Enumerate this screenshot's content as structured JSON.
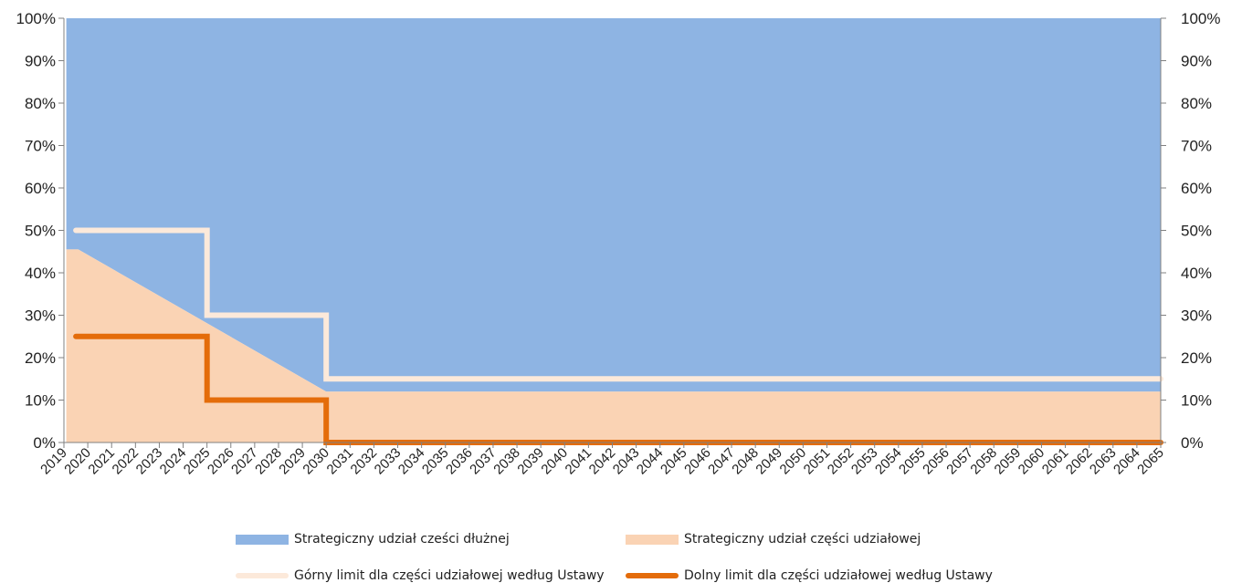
{
  "chart_data": {
    "type": "area",
    "x": [
      2019,
      2020,
      2021,
      2022,
      2023,
      2024,
      2025,
      2026,
      2027,
      2028,
      2029,
      2030,
      2031,
      2032,
      2033,
      2034,
      2035,
      2036,
      2037,
      2038,
      2039,
      2040,
      2041,
      2042,
      2043,
      2044,
      2045,
      2046,
      2047,
      2048,
      2049,
      2050,
      2051,
      2052,
      2053,
      2054,
      2055,
      2056,
      2057,
      2058,
      2059,
      2060,
      2061,
      2062,
      2063,
      2064,
      2065
    ],
    "x_tick_labels": [
      "2019",
      "2020",
      "2021",
      "2022",
      "2023",
      "2024",
      "2025",
      "2026",
      "2027",
      "2028",
      "2029",
      "2030",
      "2031",
      "2032",
      "2033",
      "2034",
      "2035",
      "2036",
      "2037",
      "2038",
      "2039",
      "2040",
      "2041",
      "2042",
      "2043",
      "2044",
      "2045",
      "2046",
      "2047",
      "2048",
      "2049",
      "2050",
      "2051",
      "2052",
      "2053",
      "2054",
      "2055",
      "2056",
      "2057",
      "2058",
      "2059",
      "2060",
      "2061",
      "2062",
      "2063",
      "2064",
      "2065"
    ],
    "y_tick_labels_left": [
      "0%",
      "10%",
      "20%",
      "30%",
      "40%",
      "50%",
      "60%",
      "70%",
      "80%",
      "90%",
      "100%"
    ],
    "y_tick_labels_right": [
      "0%",
      "10%",
      "20%",
      "30%",
      "40%",
      "50%",
      "60%",
      "70%",
      "80%",
      "90%",
      "100%"
    ],
    "ylim": [
      0,
      100
    ],
    "stacked": true,
    "series": [
      {
        "name": "Strategiczny udział części udziałowej",
        "kind": "area",
        "color": "#FAD3B4",
        "points": [
          [
            2019.1,
            45.5
          ],
          [
            2019.6,
            45.5
          ],
          [
            2030,
            12
          ],
          [
            2065,
            12
          ]
        ]
      },
      {
        "name": "Strategiczny udział cześci dłużnej",
        "kind": "area",
        "color": "#8EB4E3",
        "points": [
          [
            2019.1,
            54.5
          ],
          [
            2019.6,
            54.5
          ],
          [
            2030,
            88
          ],
          [
            2065,
            88
          ]
        ]
      },
      {
        "name": "Górny limit dla części udziałowej według Ustawy",
        "kind": "step-line",
        "color": "#FCE9DA",
        "points": [
          [
            2019.5,
            50
          ],
          [
            2025,
            50
          ],
          [
            2025,
            30
          ],
          [
            2030,
            30
          ],
          [
            2030,
            15
          ],
          [
            2065,
            15
          ]
        ]
      },
      {
        "name": "Dolny limit dla części udziałowej według Ustawy",
        "kind": "step-line",
        "color": "#E46C0A",
        "points": [
          [
            2019.5,
            25
          ],
          [
            2025,
            25
          ],
          [
            2025,
            10
          ],
          [
            2030,
            10
          ],
          [
            2030,
            0
          ],
          [
            2065,
            0
          ]
        ]
      }
    ],
    "legend": [
      {
        "label": "Strategiczny udział cześci dłużnej",
        "color": "#8EB4E3",
        "style": "box"
      },
      {
        "label": "Strategiczny udział części udziałowej",
        "color": "#FAD3B4",
        "style": "box"
      },
      {
        "label": "Górny limit dla części udziałowej według Ustawy",
        "color": "#FCE9DA",
        "style": "line"
      },
      {
        "label": "Dolny limit dla części udziałowej według Ustawy",
        "color": "#E46C0A",
        "style": "line"
      }
    ],
    "legend_position": "bottom",
    "grid": false
  }
}
